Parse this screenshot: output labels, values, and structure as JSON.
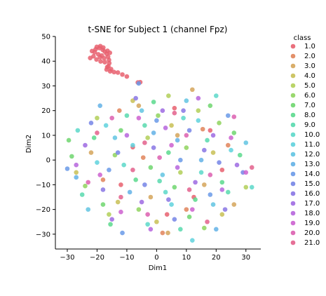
{
  "chart_data": {
    "type": "scatter",
    "title": "t-SNE for Subject 1 (channel Fpz)",
    "xlabel": "Dim1",
    "ylabel": "Dim2",
    "xlim": [
      -34,
      35
    ],
    "ylim": [
      -36,
      50
    ],
    "xticks": [
      -30,
      -20,
      -10,
      0,
      10,
      20,
      30
    ],
    "yticks": [
      -30,
      -20,
      -10,
      0,
      10,
      20,
      30,
      40,
      50
    ],
    "xtick_labels": [
      "−30",
      "−20",
      "−10",
      "0",
      "10",
      "20",
      "30"
    ],
    "ytick_labels": [
      "−30",
      "−20",
      "−10",
      "0",
      "10",
      "20",
      "30",
      "40",
      "50"
    ],
    "grid": false,
    "legend_position": "right",
    "legend_title": "class",
    "classes": [
      "1.0",
      "2.0",
      "3.0",
      "4.0",
      "5.0",
      "6.0",
      "7.0",
      "8.0",
      "9.0",
      "10.0",
      "11.0",
      "12.0",
      "13.0",
      "14.0",
      "15.0",
      "16.0",
      "17.0",
      "18.0",
      "19.0",
      "20.0",
      "21.0"
    ],
    "colors": [
      "#e8606f",
      "#e0845a",
      "#d5a55a",
      "#c8bf55",
      "#b2cf58",
      "#8fd45e",
      "#6ed66e",
      "#5bd98d",
      "#58d9ae",
      "#5cd8c9",
      "#5fd2dd",
      "#61c4e2",
      "#63b1e6",
      "#6a9ae8",
      "#7685e6",
      "#8876e4",
      "#9e6ae2",
      "#b665dd",
      "#cc60cf",
      "#dc5faf",
      "#e3608c"
    ],
    "series": [
      {
        "class": "1.0",
        "points": [
          [
            -20.5,
            44.8
          ],
          [
            -19.2,
            45.3
          ],
          [
            -18.1,
            44.6
          ],
          [
            -17.4,
            43.9
          ],
          [
            -16.8,
            43.0
          ],
          [
            -16.3,
            41.8
          ],
          [
            -16.0,
            40.5
          ],
          [
            -15.9,
            39.2
          ],
          [
            -16.2,
            38.0
          ],
          [
            -16.8,
            36.6
          ],
          [
            -15.6,
            35.9
          ],
          [
            -14.3,
            35.6
          ],
          [
            -13.0,
            35.4
          ],
          [
            -11.5,
            34.6
          ],
          [
            -10.0,
            33.8
          ],
          [
            -20.8,
            43.6
          ],
          [
            -19.6,
            42.8
          ],
          [
            -18.4,
            42.3
          ],
          [
            -21.2,
            42.0
          ],
          [
            -19.0,
            41.6
          ],
          [
            -17.6,
            41.2
          ],
          [
            -22.3,
            41.3
          ],
          [
            -20.2,
            40.7
          ],
          [
            -18.8,
            39.9
          ],
          [
            -17.4,
            39.6
          ],
          [
            -16.6,
            37.6
          ],
          [
            -15.3,
            36.8
          ],
          [
            -21.7,
            44.1
          ],
          [
            -20.1,
            45.8
          ],
          [
            -18.9,
            46.1
          ],
          [
            -17.9,
            45.5
          ],
          [
            -16.5,
            44.2
          ],
          [
            -15.7,
            43.4
          ],
          [
            -5.5,
            31.5
          ],
          [
            -6.3,
            31.4
          ],
          [
            12.5,
            -15.0
          ],
          [
            -8.0,
            5.2
          ],
          [
            3.5,
            -22.0
          ],
          [
            18.0,
            12.0
          ],
          [
            -12.0,
            -10.0
          ],
          [
            6.0,
            21.0
          ],
          [
            22.0,
            -4.0
          ]
        ]
      },
      {
        "class": "2.0",
        "points": [
          [
            -4.5,
            1.0
          ],
          [
            10.0,
            -20.0
          ],
          [
            15.5,
            12.5
          ],
          [
            -18.0,
            -8.0
          ],
          [
            2.0,
            -29.5
          ],
          [
            24.0,
            6.0
          ],
          [
            -12.5,
            20.0
          ]
        ]
      },
      {
        "class": "3.0",
        "points": [
          [
            3.8,
            -29.5
          ],
          [
            -6.0,
            22.0
          ],
          [
            16.0,
            -10.0
          ],
          [
            -22.0,
            3.0
          ],
          [
            7.0,
            10.0
          ],
          [
            26.0,
            -18.0
          ],
          [
            -2.0,
            -15.0
          ],
          [
            12.0,
            28.5
          ]
        ]
      },
      {
        "class": "4.0",
        "points": [
          [
            -13.0,
            -17.0
          ],
          [
            5.0,
            14.0
          ],
          [
            19.0,
            3.0
          ],
          [
            -27.0,
            -5.0
          ],
          [
            0.0,
            -25.0
          ],
          [
            -8.0,
            24.0
          ],
          [
            22.0,
            -22.0
          ]
        ]
      },
      {
        "class": "5.0",
        "points": [
          [
            -20.0,
            17.0
          ],
          [
            8.0,
            -5.0
          ],
          [
            -3.0,
            9.0
          ],
          [
            14.0,
            20.0
          ],
          [
            -16.0,
            -22.0
          ],
          [
            30.0,
            -11.0
          ],
          [
            4.0,
            26.0
          ]
        ]
      },
      {
        "class": "6.0",
        "points": [
          [
            -24.0,
            -10.5
          ],
          [
            10.0,
            5.0
          ],
          [
            -6.0,
            -20.0
          ],
          [
            21.0,
            15.0
          ],
          [
            -14.0,
            2.0
          ],
          [
            16.0,
            -27.5
          ],
          [
            0.5,
            18.0
          ]
        ]
      },
      {
        "class": "7.0",
        "points": [
          [
            -29.5,
            8.0
          ],
          [
            -28.5,
            1.5
          ],
          [
            -12.0,
            12.0
          ],
          [
            6.0,
            -11.0
          ],
          [
            18.0,
            22.0
          ],
          [
            -2.0,
            -3.0
          ],
          [
            26.0,
            11.0
          ],
          [
            -18.0,
            -18.0
          ],
          [
            11.0,
            -23.0
          ]
        ]
      },
      {
        "class": "8.0",
        "points": [
          [
            -7.0,
            -8.0
          ],
          [
            4.0,
            3.0
          ],
          [
            13.0,
            -16.0
          ],
          [
            -21.0,
            9.0
          ],
          [
            22.0,
            -9.0
          ],
          [
            -1.0,
            23.5
          ],
          [
            -15.5,
            -26.0
          ],
          [
            28.0,
            2.0
          ]
        ]
      },
      {
        "class": "9.0",
        "points": [
          [
            1.0,
            -8.5
          ],
          [
            -10.0,
            18.0
          ],
          [
            17.0,
            8.0
          ],
          [
            -25.0,
            -14.0
          ],
          [
            8.0,
            -28.0
          ],
          [
            -4.0,
            14.0
          ],
          [
            24.0,
            -13.0
          ]
        ]
      },
      {
        "class": "10.0",
        "points": [
          [
            -26.5,
            12.0
          ],
          [
            9.0,
            17.0
          ],
          [
            -11.0,
            -2.0
          ],
          [
            15.0,
            -5.0
          ],
          [
            -3.0,
            -26.0
          ],
          [
            20.0,
            26.0
          ],
          [
            3.0,
            -13.0
          ],
          [
            32.0,
            -11.0
          ]
        ]
      },
      {
        "class": "11.0",
        "points": [
          [
            12.0,
            -32.5
          ],
          [
            -17.0,
            14.0
          ],
          [
            5.0,
            -18.0
          ],
          [
            -8.0,
            6.0
          ],
          [
            25.0,
            4.0
          ],
          [
            -20.0,
            -1.0
          ],
          [
            14.0,
            16.0
          ]
        ]
      },
      {
        "class": "12.0",
        "points": [
          [
            -14.0,
            9.0
          ],
          [
            2.0,
            -6.0
          ],
          [
            19.0,
            -18.0
          ],
          [
            -5.0,
            20.0
          ],
          [
            10.0,
            24.0
          ],
          [
            -23.0,
            -20.0
          ],
          [
            30.0,
            7.0
          ]
        ]
      },
      {
        "class": "13.0",
        "points": [
          [
            20.0,
            -28.0
          ],
          [
            -9.0,
            -13.0
          ],
          [
            7.0,
            8.0
          ],
          [
            -19.0,
            22.0
          ],
          [
            15.0,
            0.0
          ],
          [
            -1.0,
            11.0
          ],
          [
            -27.0,
            -7.0
          ]
        ]
      },
      {
        "class": "14.0",
        "points": [
          [
            -11.5,
            -29.5
          ],
          [
            -6.0,
            31.0
          ],
          [
            8.0,
            0.0
          ],
          [
            -16.0,
            -4.0
          ],
          [
            18.0,
            -14.0
          ],
          [
            0.0,
            16.0
          ],
          [
            24.0,
            18.0
          ],
          [
            -30.0,
            -3.5
          ]
        ]
      },
      {
        "class": "15.0",
        "points": [
          [
            -13.0,
            3.0
          ],
          [
            6.0,
            -24.0
          ],
          [
            11.0,
            12.0
          ],
          [
            -22.0,
            15.0
          ],
          [
            21.0,
            -1.0
          ],
          [
            -4.0,
            -10.0
          ],
          [
            29.0,
            -5.0
          ]
        ]
      },
      {
        "class": "16.0",
        "points": [
          [
            -7.0,
            25.0
          ],
          [
            4.0,
            -16.0
          ],
          [
            16.0,
            4.0
          ],
          [
            -18.0,
            -12.0
          ],
          [
            -1.0,
            5.0
          ],
          [
            23.0,
            -20.0
          ],
          [
            9.0,
            20.0
          ]
        ]
      },
      {
        "class": "17.0",
        "points": [
          [
            -15.0,
            -24.0
          ],
          [
            2.0,
            20.0
          ],
          [
            13.0,
            -9.0
          ],
          [
            -24.0,
            6.0
          ],
          [
            19.0,
            10.0
          ],
          [
            -5.0,
            -17.0
          ],
          [
            27.0,
            -2.0
          ]
        ]
      },
      {
        "class": "18.0",
        "points": [
          [
            -10.0,
            10.0
          ],
          [
            7.0,
            -3.0
          ],
          [
            -2.0,
            -28.0
          ],
          [
            14.0,
            25.0
          ],
          [
            -27.0,
            -2.0
          ],
          [
            22.0,
            -12.0
          ],
          [
            3.0,
            13.0
          ]
        ]
      },
      {
        "class": "19.0",
        "points": [
          [
            -19.0,
            -6.0
          ],
          [
            5.0,
            6.0
          ],
          [
            12.0,
            -20.0
          ],
          [
            -6.0,
            17.0
          ],
          [
            25.0,
            9.0
          ],
          [
            -12.0,
            -21.0
          ],
          [
            30.0,
            -5.0
          ]
        ]
      },
      {
        "class": "20.0",
        "points": [
          [
            -3.0,
            -22.0
          ],
          [
            10.0,
            10.0
          ],
          [
            -15.0,
            17.0
          ],
          [
            18.0,
            -6.0
          ],
          [
            -23.0,
            -9.0
          ],
          [
            1.0,
            1.0
          ],
          [
            26.0,
            17.5
          ]
        ]
      },
      {
        "class": "21.0",
        "points": [
          [
            -8.0,
            -4.0
          ],
          [
            11.0,
            -12.0
          ],
          [
            -20.0,
            11.0
          ],
          [
            6.0,
            19.0
          ],
          [
            17.0,
            -25.0
          ],
          [
            -12.0,
            -15.0
          ],
          [
            32.0,
            -3.0
          ],
          [
            -4.0,
            7.0
          ]
        ]
      }
    ]
  }
}
